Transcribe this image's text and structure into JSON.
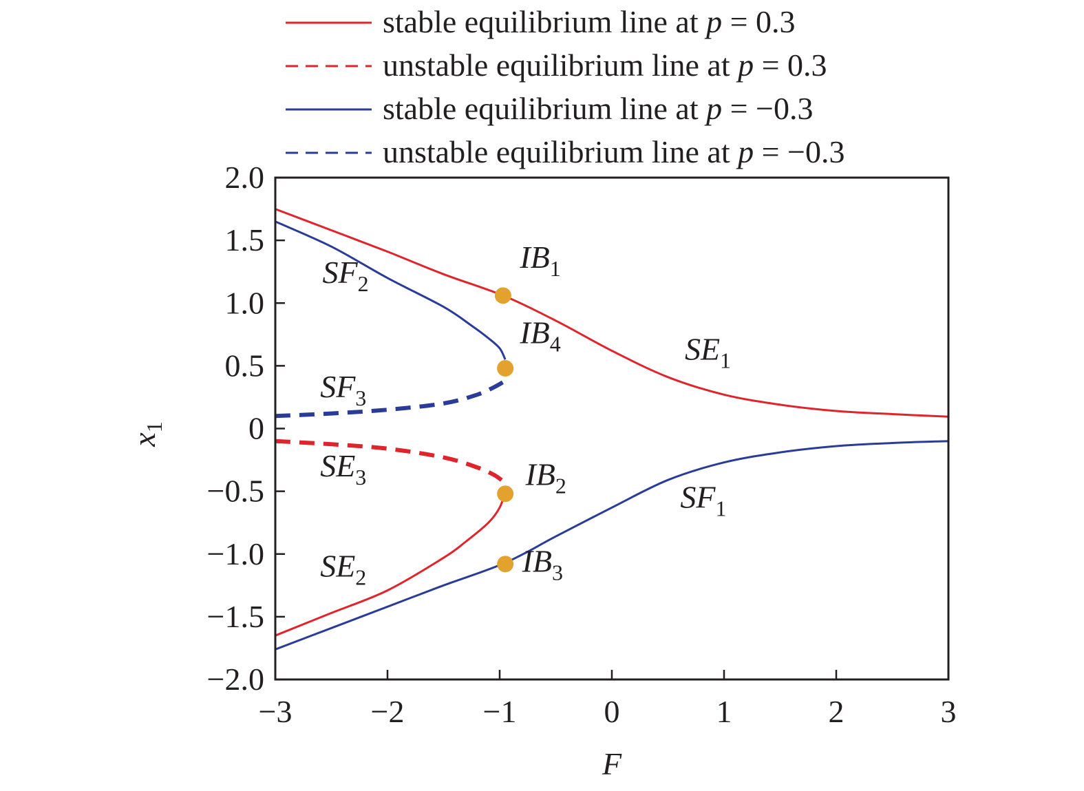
{
  "chart_data": {
    "type": "line",
    "xlabel": "F",
    "ylabel": {
      "main": "x",
      "sub": "1"
    },
    "xlim": [
      -3,
      3
    ],
    "ylim": [
      -2,
      2
    ],
    "x_ticks": [
      -3,
      -2,
      -1,
      0,
      1,
      2,
      3
    ],
    "x_tick_labels": [
      "−3",
      "−2",
      "−1",
      "0",
      "1",
      "2",
      "3"
    ],
    "y_ticks": [
      -2,
      -1.5,
      -1,
      -0.5,
      0,
      0.5,
      1,
      1.5,
      2
    ],
    "y_tick_labels": [
      "−2.0",
      "−1.5",
      "−1.0",
      "−0.5",
      "0",
      "0.5",
      "1.0",
      "1.5",
      "2.0"
    ],
    "grid": false,
    "legend_position": "top",
    "legend": [
      {
        "text": "stable equilibrium line at ",
        "p_value": "0.3",
        "color": "#e0242c",
        "dash": false
      },
      {
        "text": "unstable equilibrium line at ",
        "p_value": "0.3",
        "color": "#e0242c",
        "dash": true
      },
      {
        "text": "stable equilibrium line at ",
        "p_value": "−0.3",
        "color": "#2a3c97",
        "dash": false
      },
      {
        "text": "unstable equilibrium line at ",
        "p_value": "−0.3",
        "color": "#2a3c97",
        "dash": true
      }
    ],
    "series": [
      {
        "color": "#e0242c",
        "dash": false,
        "width": 3,
        "points": [
          [
            -3,
            1.75
          ],
          [
            -2.5,
            1.58
          ],
          [
            -2,
            1.41
          ],
          [
            -1.5,
            1.23
          ],
          [
            -0.97,
            1.06
          ],
          [
            -0.5,
            0.86
          ],
          [
            0,
            0.62
          ],
          [
            0.5,
            0.41
          ],
          [
            1,
            0.27
          ],
          [
            1.5,
            0.19
          ],
          [
            2,
            0.14
          ],
          [
            2.5,
            0.115
          ],
          [
            3,
            0.095
          ]
        ]
      },
      {
        "color": "#2a3c97",
        "dash": false,
        "width": 3,
        "points": [
          [
            3,
            -0.1
          ],
          [
            2.5,
            -0.115
          ],
          [
            2,
            -0.14
          ],
          [
            1.5,
            -0.19
          ],
          [
            1,
            -0.27
          ],
          [
            0.5,
            -0.41
          ],
          [
            0,
            -0.63
          ],
          [
            -0.5,
            -0.86
          ],
          [
            -0.95,
            -1.07
          ],
          [
            -1.5,
            -1.25
          ],
          [
            -2,
            -1.42
          ],
          [
            -2.5,
            -1.59
          ],
          [
            -3,
            -1.76
          ]
        ]
      },
      {
        "color": "#2a3c97",
        "dash": false,
        "width": 3,
        "points": [
          [
            -3,
            1.65
          ],
          [
            -2.5,
            1.45
          ],
          [
            -2,
            1.2
          ],
          [
            -1.5,
            0.97
          ],
          [
            -1.25,
            0.82
          ],
          [
            -1.1,
            0.72
          ],
          [
            -1.0,
            0.64
          ],
          [
            -0.95,
            0.55
          ]
        ]
      },
      {
        "color": "#2a3c97",
        "dash": true,
        "width": 6,
        "points": [
          [
            -3,
            0.1
          ],
          [
            -2.5,
            0.12
          ],
          [
            -2,
            0.15
          ],
          [
            -1.5,
            0.2
          ],
          [
            -1.2,
            0.27
          ],
          [
            -1.05,
            0.33
          ],
          [
            -0.97,
            0.37
          ]
        ]
      },
      {
        "color": "#e0242c",
        "dash": true,
        "width": 6,
        "points": [
          [
            -3,
            -0.1
          ],
          [
            -2.5,
            -0.125
          ],
          [
            -2,
            -0.16
          ],
          [
            -1.5,
            -0.23
          ],
          [
            -1.2,
            -0.31
          ],
          [
            -1.05,
            -0.37
          ],
          [
            -0.97,
            -0.42
          ]
        ]
      },
      {
        "color": "#e0242c",
        "dash": false,
        "width": 3,
        "points": [
          [
            -0.95,
            -0.5
          ],
          [
            -1.0,
            -0.63
          ],
          [
            -1.1,
            -0.75
          ],
          [
            -1.3,
            -0.9
          ],
          [
            -1.5,
            -1.03
          ],
          [
            -2,
            -1.29
          ],
          [
            -2.5,
            -1.47
          ],
          [
            -3,
            -1.65
          ]
        ]
      }
    ],
    "points": [
      {
        "name": "IB",
        "sub": "1",
        "x": -0.97,
        "y": 1.06,
        "label_x": -0.82,
        "label_y": 1.28
      },
      {
        "name": "IB",
        "sub": "4",
        "x": -0.95,
        "y": 0.48,
        "label_x": -0.82,
        "label_y": 0.68
      },
      {
        "name": "IB",
        "sub": "2",
        "x": -0.95,
        "y": -0.52,
        "label_x": -0.77,
        "label_y": -0.45
      },
      {
        "name": "IB",
        "sub": "3",
        "x": -0.95,
        "y": -1.08,
        "label_x": -0.8,
        "label_y": -1.14
      }
    ],
    "point_color": "#e3a22e",
    "region_labels": [
      {
        "main": "SF",
        "sub": "2",
        "x": -2.58,
        "y": 1.16
      },
      {
        "main": "SF",
        "sub": "3",
        "x": -2.6,
        "y": 0.25
      },
      {
        "main": "SE",
        "sub": "3",
        "x": -2.6,
        "y": -0.38
      },
      {
        "main": "SE",
        "sub": "2",
        "x": -2.6,
        "y": -1.18
      },
      {
        "main": "SE",
        "sub": "1",
        "x": 0.65,
        "y": 0.55
      },
      {
        "main": "SF",
        "sub": "1",
        "x": 0.61,
        "y": -0.63
      }
    ]
  }
}
